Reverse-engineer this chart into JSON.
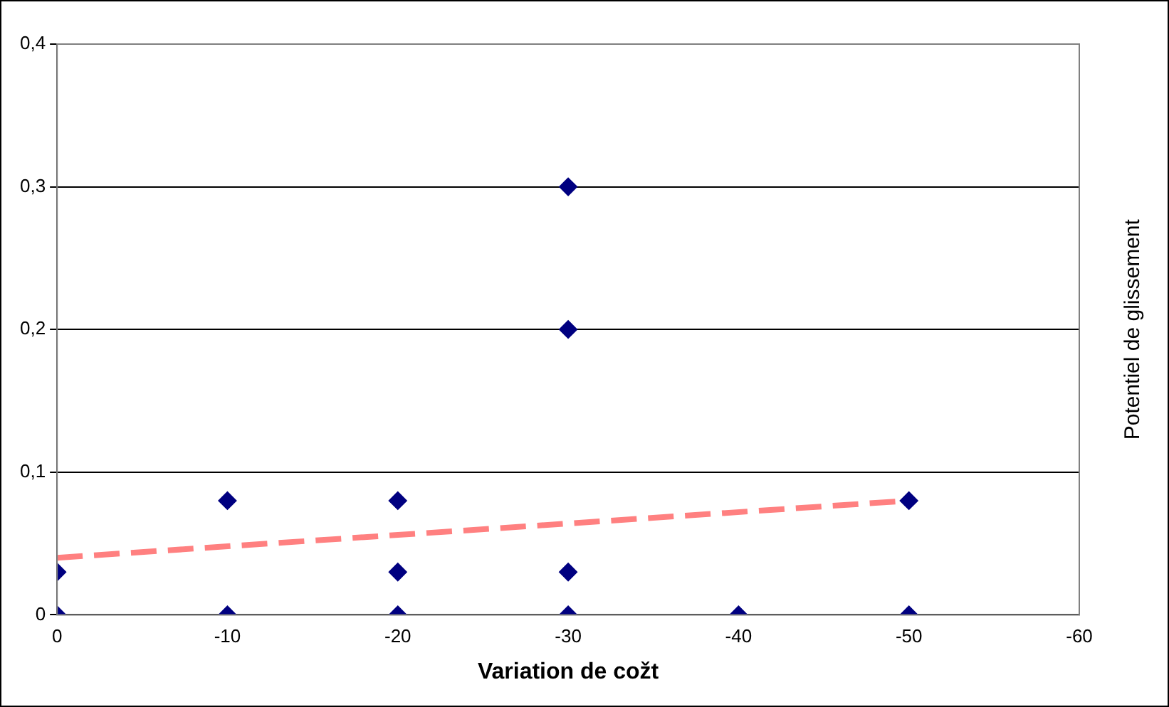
{
  "chart_data": {
    "type": "scatter",
    "xlabel": "Variation de cožt",
    "ylabel": "Potentiel de glissement",
    "xlim": [
      0,
      -60
    ],
    "xticks": [
      0,
      -10,
      -20,
      -30,
      -40,
      -50,
      -60
    ],
    "ylim": [
      0,
      0.4
    ],
    "yticks": [
      {
        "value": 0,
        "label": "0"
      },
      {
        "value": 0.1,
        "label": "0,1"
      },
      {
        "value": 0.2,
        "label": "0,2"
      },
      {
        "value": 0.3,
        "label": "0,3"
      },
      {
        "value": 0.4,
        "label": "0,4"
      }
    ],
    "grid": "y",
    "legend": false,
    "marker": "diamond",
    "series": [
      {
        "type": "scatter",
        "color": "#000080",
        "x": [
          0,
          0,
          -10,
          -10,
          -20,
          -20,
          -20,
          -30,
          -30,
          -30,
          -30,
          -40,
          -50,
          -50
        ],
        "values": [
          0,
          0.03,
          0.08,
          0,
          0.08,
          0.03,
          0,
          0.3,
          0.2,
          0.03,
          0,
          0,
          0.08,
          0
        ]
      },
      {
        "type": "line",
        "color": "#ff8080",
        "line_style": "dashed",
        "marker": "none",
        "x": [
          0,
          -50
        ],
        "values": [
          0.04,
          0.08
        ]
      }
    ]
  }
}
